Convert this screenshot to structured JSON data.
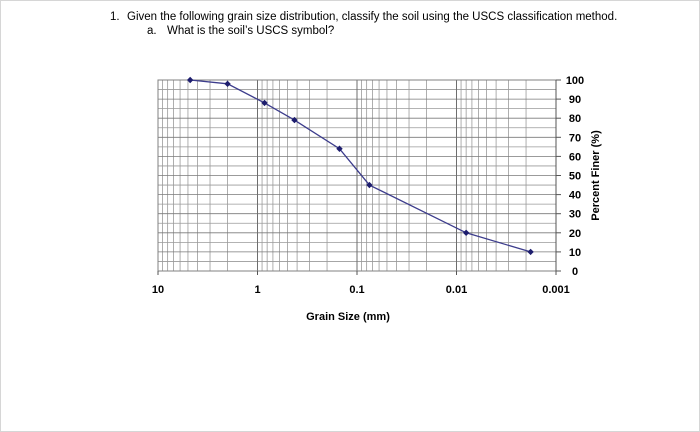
{
  "question": {
    "number": "1.",
    "text": "Given the following grain size distribution, classify the soil using the USCS classification method.",
    "sub": {
      "letter": "a.",
      "text": "What is the soil’s USCS symbol?"
    }
  },
  "chart_data": {
    "type": "line",
    "title": "",
    "xlabel": "Grain Size (mm)",
    "ylabel": "Percent Finer (%)",
    "x_scale": "log",
    "x_reversed": true,
    "xlim": [
      10,
      0.001
    ],
    "ylim": [
      0,
      100
    ],
    "grid": true,
    "x_tick_labels": [
      "10",
      "1",
      "0.1",
      "0.01",
      "0.001"
    ],
    "x_tick_values": [
      10,
      1,
      0.1,
      0.01,
      0.001
    ],
    "y_tick_labels": [
      "100",
      "90",
      "80",
      "70",
      "60",
      "50",
      "40",
      "30",
      "20",
      "10",
      "0"
    ],
    "y_tick_values": [
      100,
      90,
      80,
      70,
      60,
      50,
      40,
      30,
      20,
      10,
      0
    ],
    "y_axis_side": "right",
    "series_color": "#3c3c8c",
    "series": [
      {
        "x": [
          4.75,
          2.0,
          0.85,
          0.425,
          0.15,
          0.075,
          0.008,
          0.0018
        ],
        "y": [
          100,
          98,
          88,
          79,
          64,
          45,
          20,
          10
        ]
      }
    ]
  }
}
